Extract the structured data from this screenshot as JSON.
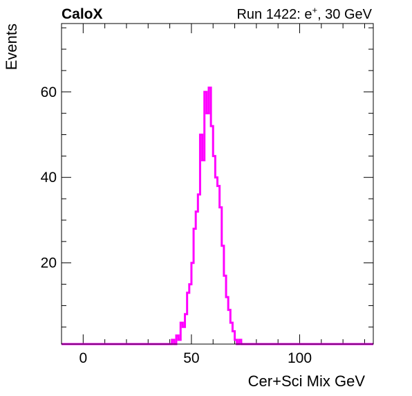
{
  "header": {
    "brand": "CaloX",
    "run_info_prefix": "Run 1422: e",
    "run_info_sup": "+",
    "run_info_suffix": ", 30 GeV"
  },
  "chart_data": {
    "type": "histogram",
    "xlabel": "Cer+Sci Mix GeV",
    "ylabel": "Events",
    "xlim": [
      -10,
      134
    ],
    "ylim": [
      1,
      76
    ],
    "xticks": [
      0,
      50,
      100
    ],
    "yticks": [
      20,
      40,
      60
    ],
    "grid": false,
    "line_color": "#ff00ff",
    "series": [
      {
        "values": [
          [
            12,
            1
          ],
          [
            22,
            1
          ],
          [
            25,
            1
          ],
          [
            34,
            1
          ],
          [
            36,
            1
          ],
          [
            37,
            1
          ],
          [
            38,
            1
          ],
          [
            40,
            1
          ],
          [
            41,
            2
          ],
          [
            42,
            1
          ],
          [
            43,
            3
          ],
          [
            44,
            2
          ],
          [
            45,
            6
          ],
          [
            46,
            5
          ],
          [
            47,
            8
          ],
          [
            48,
            13
          ],
          [
            49,
            15
          ],
          [
            50,
            20
          ],
          [
            51,
            28
          ],
          [
            52,
            32
          ],
          [
            53,
            36
          ],
          [
            54,
            50
          ],
          [
            55,
            44
          ],
          [
            56,
            60
          ],
          [
            57,
            55
          ],
          [
            58,
            61
          ],
          [
            59,
            52
          ],
          [
            60,
            45
          ],
          [
            61,
            40
          ],
          [
            62,
            38
          ],
          [
            63,
            33
          ],
          [
            64,
            24
          ],
          [
            65,
            17
          ],
          [
            66,
            12
          ],
          [
            67,
            9
          ],
          [
            68,
            6
          ],
          [
            69,
            4
          ],
          [
            70,
            2
          ],
          [
            71,
            1
          ],
          [
            72,
            2
          ],
          [
            73,
            1
          ],
          [
            77,
            1
          ]
        ]
      }
    ]
  }
}
